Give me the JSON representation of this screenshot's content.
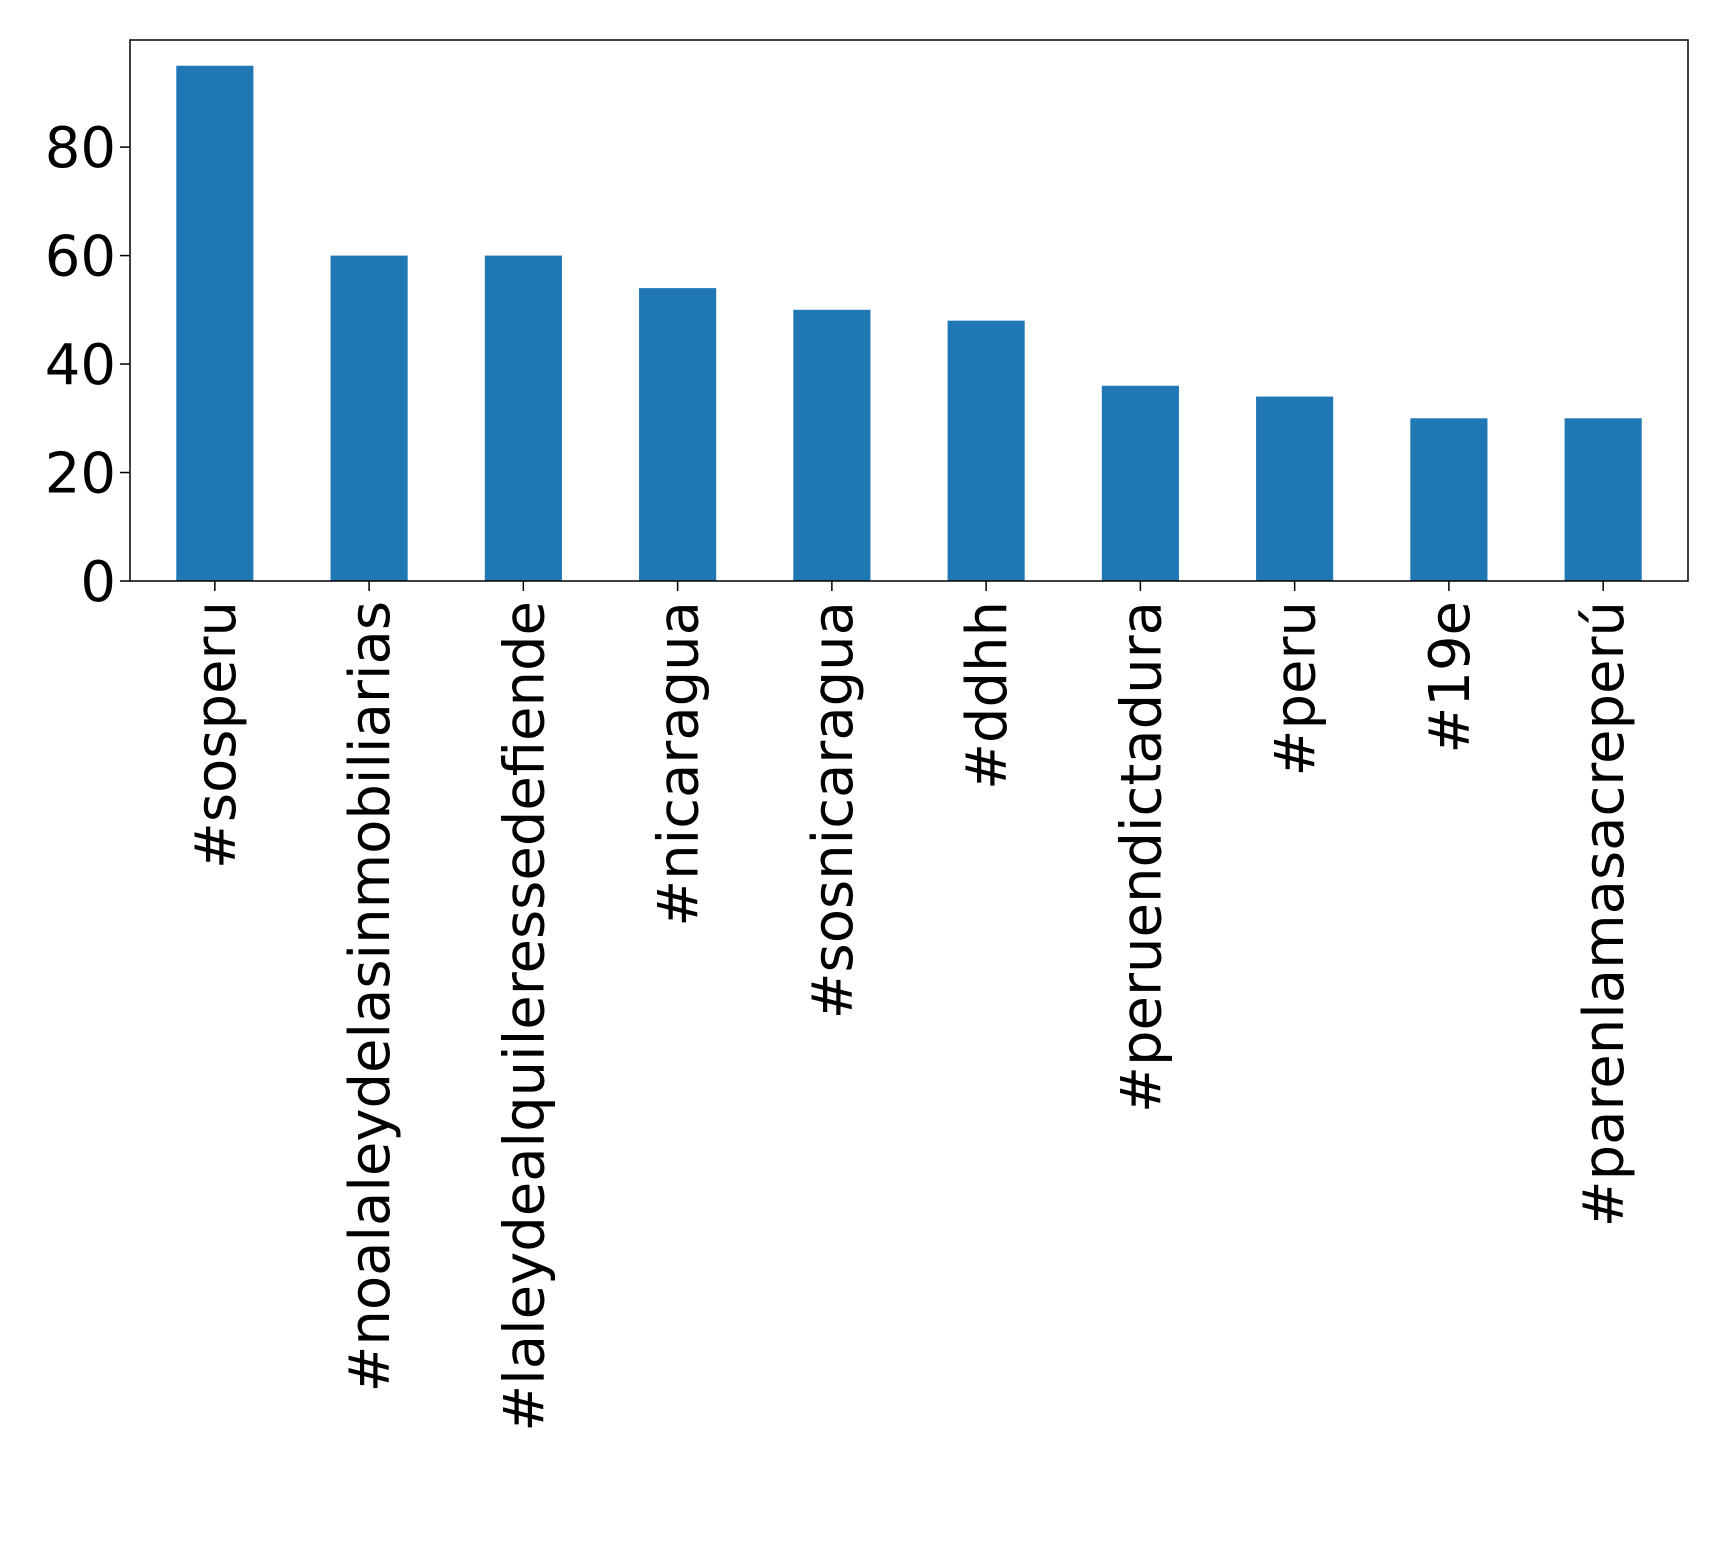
{
  "chart_data": {
    "type": "bar",
    "title": "",
    "xlabel": "",
    "ylabel": "",
    "categories": [
      "#sosperu",
      "#noalaleydelasinmobiliarias",
      "#laleydealquileressedefiende",
      "#nicaragua",
      "#sosnicaragua",
      "#ddhh",
      "#peruendictadura",
      "#peru",
      "#19e",
      "#parenlamasacreperú"
    ],
    "values": [
      95,
      60,
      60,
      54,
      50,
      48,
      36,
      34,
      30,
      30
    ],
    "ylim": [
      0,
      99.75
    ],
    "yticks": [
      0,
      20,
      40,
      60,
      80
    ],
    "grid": false,
    "legend": "none",
    "bar_color": "#1f77b4"
  }
}
